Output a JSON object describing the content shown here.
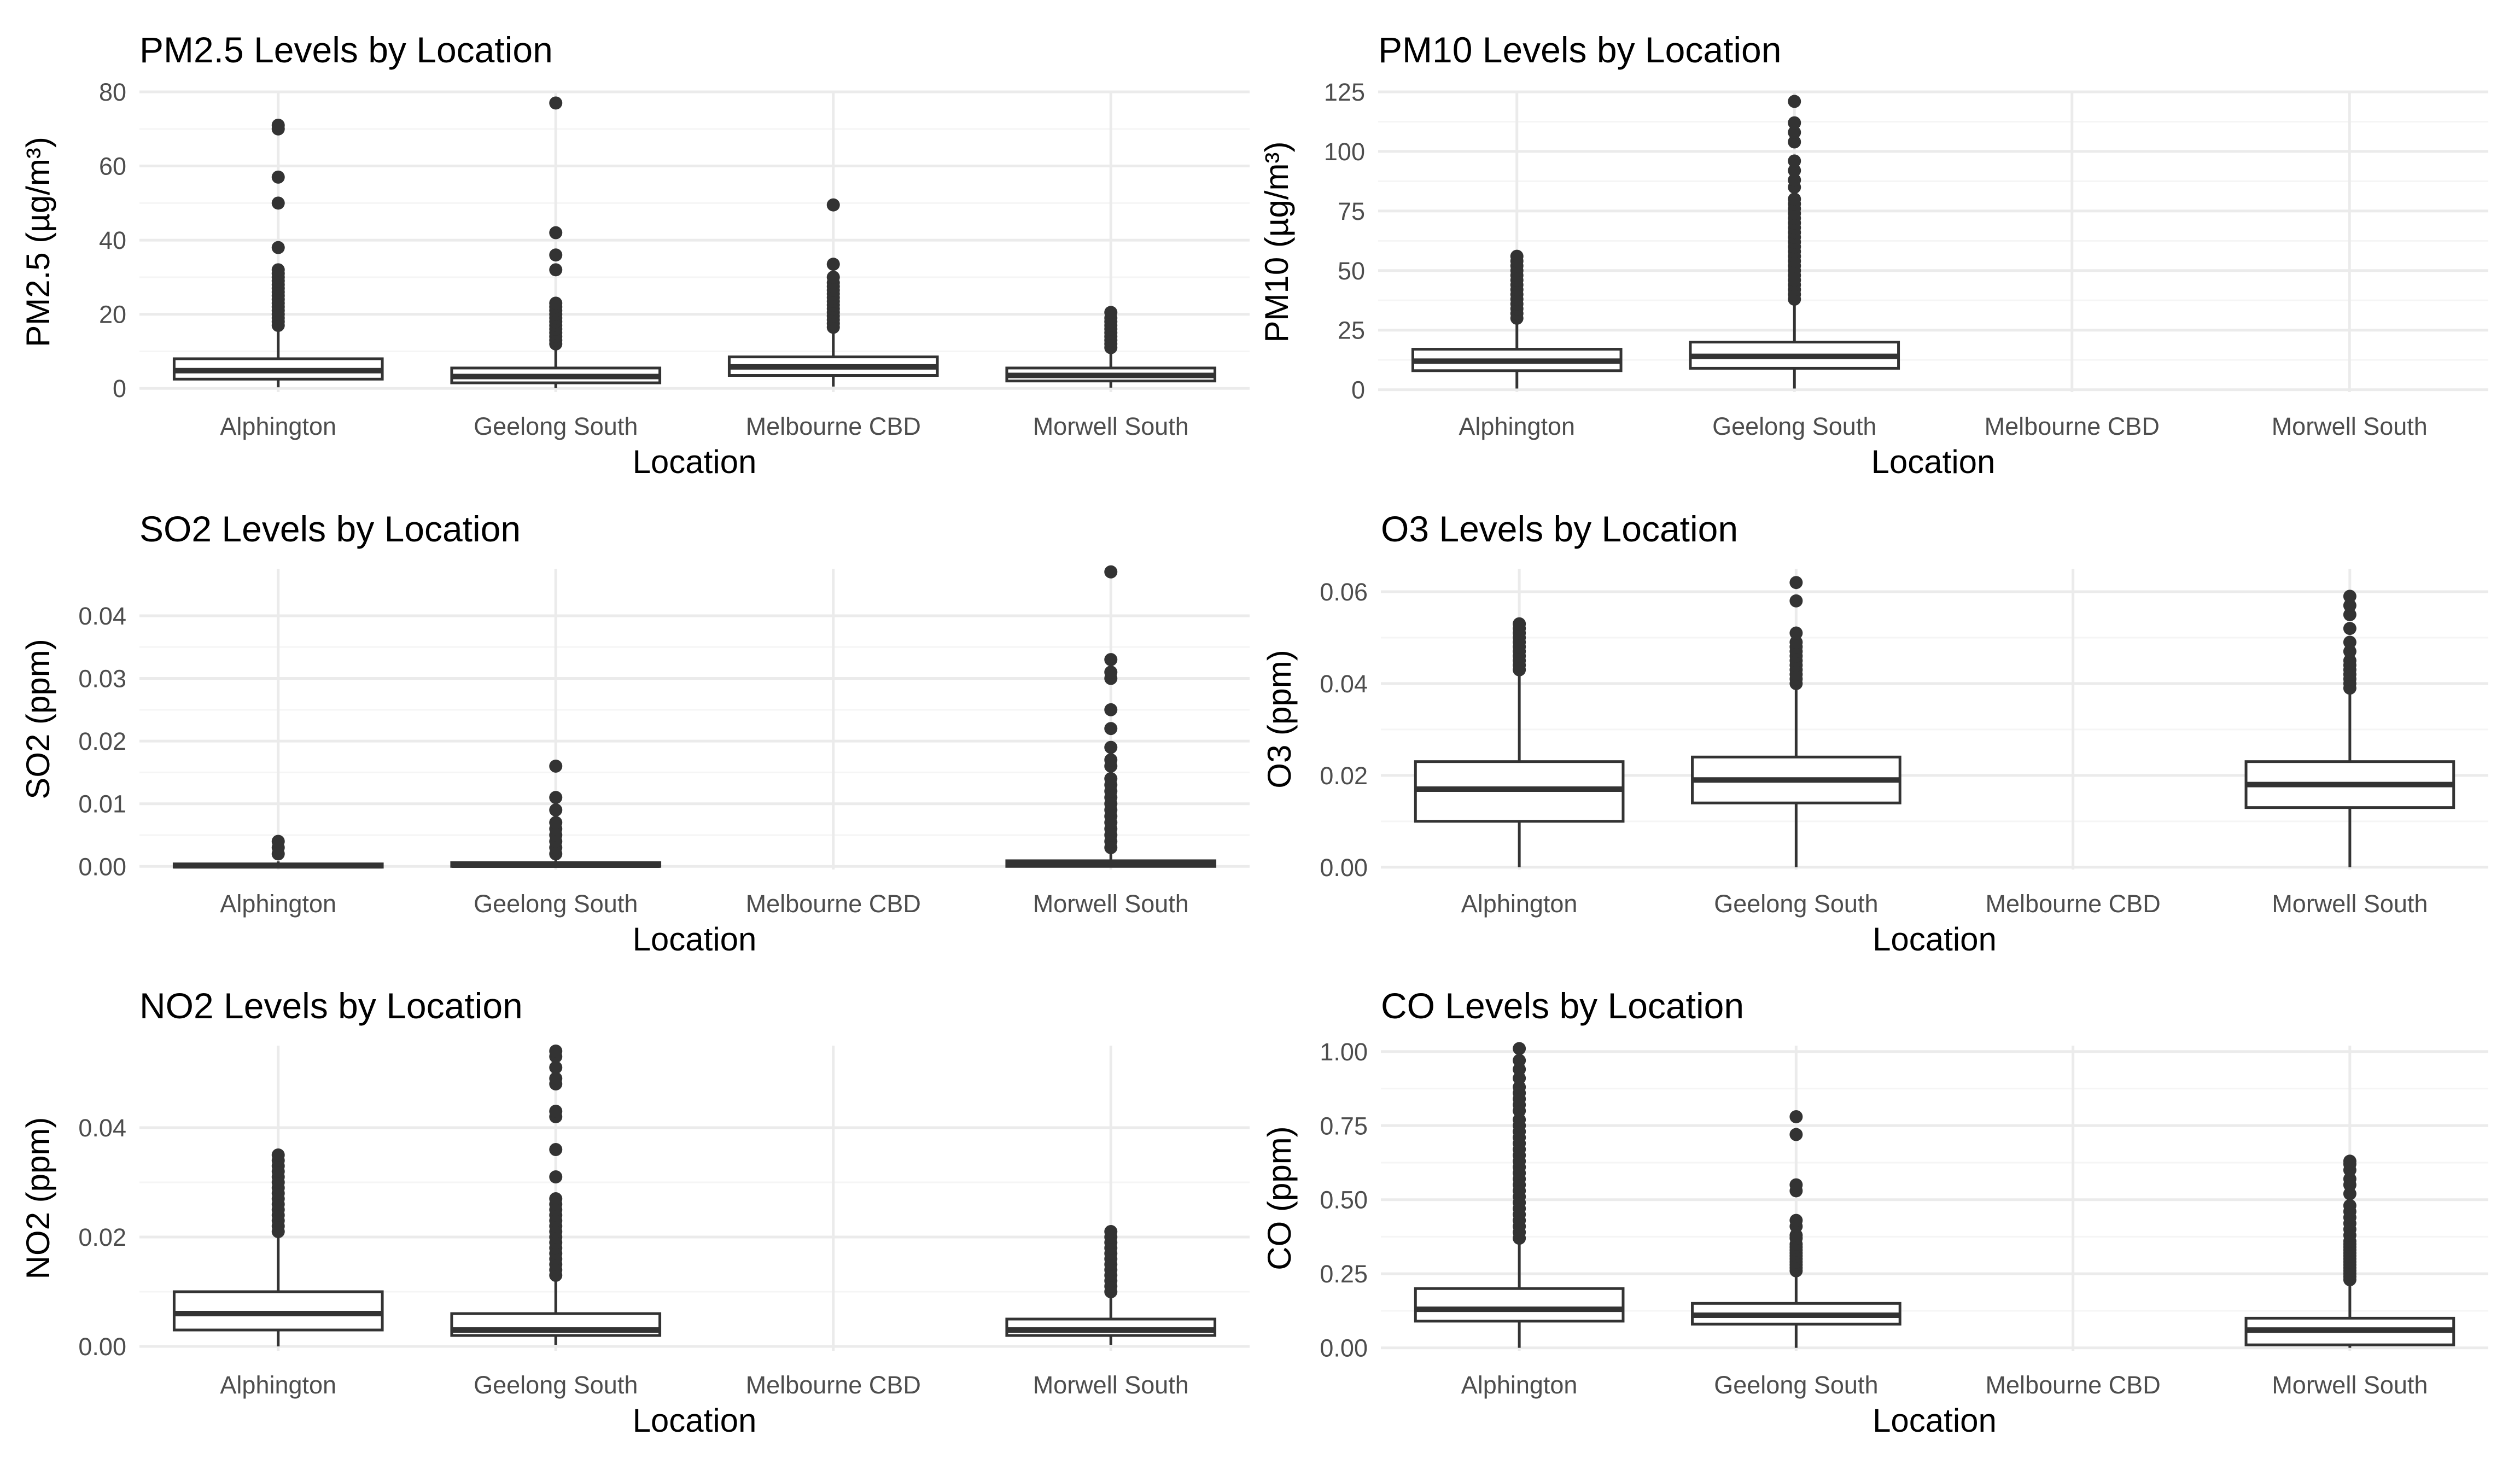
{
  "chart_data": [
    {
      "type": "boxplot",
      "title": "PM2.5 Levels by Location",
      "xlabel": "Location",
      "ylabel": "PM2.5 (µg/m³)",
      "categories": [
        "Alphington",
        "Geelong South",
        "Melbourne CBD",
        "Morwell South"
      ],
      "ylim": [
        -1,
        80
      ],
      "yticks": [
        0,
        20,
        40,
        60,
        80
      ],
      "ytick_labels": [
        "0",
        "20",
        "40",
        "60",
        "80"
      ],
      "grid": true,
      "boxes": [
        {
          "category": "Alphington",
          "whisker_low": 0.3,
          "q1": 2.5,
          "median": 4.8,
          "q3": 8,
          "whisker_high": 16.5,
          "outliers": [
            17,
            18,
            19,
            20,
            21,
            22,
            23,
            24,
            25,
            26,
            27,
            28,
            29,
            30,
            31,
            32,
            38,
            50,
            57,
            70,
            71
          ]
        },
        {
          "category": "Geelong South",
          "whisker_low": 0.1,
          "q1": 1.5,
          "median": 3.2,
          "q3": 5.5,
          "whisker_high": 11.5,
          "outliers": [
            12,
            13,
            14,
            15,
            16,
            17,
            18,
            19,
            20,
            21,
            22,
            23,
            32,
            36,
            42,
            77
          ]
        },
        {
          "category": "Melbourne CBD",
          "whisker_low": 0.5,
          "q1": 3.5,
          "median": 5.8,
          "q3": 8.5,
          "whisker_high": 16,
          "outliers": [
            16.5,
            17.5,
            18.5,
            19.5,
            20.5,
            21.5,
            22.5,
            23.5,
            24.5,
            25.5,
            26.5,
            27.5,
            28.5,
            30,
            33.5,
            49.5
          ]
        },
        {
          "category": "Morwell South",
          "whisker_low": 0.2,
          "q1": 2,
          "median": 3.5,
          "q3": 5.5,
          "whisker_high": 10.5,
          "outliers": [
            11,
            12,
            13,
            14,
            15,
            16,
            17,
            18,
            19,
            20.5
          ]
        }
      ]
    },
    {
      "type": "boxplot",
      "title": "PM10 Levels by Location",
      "xlabel": "Location",
      "ylabel": "PM10 (µg/m³)",
      "categories": [
        "Alphington",
        "Geelong South",
        "Melbourne CBD",
        "Morwell South"
      ],
      "ylim": [
        -1,
        125
      ],
      "yticks": [
        0,
        25,
        50,
        75,
        100,
        125
      ],
      "ytick_labels": [
        "0",
        "25",
        "50",
        "75",
        "100",
        "125"
      ],
      "grid": true,
      "boxes": [
        {
          "category": "Alphington",
          "whisker_low": 0.5,
          "q1": 8,
          "median": 12,
          "q3": 17,
          "whisker_high": 29,
          "outliers": [
            30,
            32,
            34,
            36,
            38,
            40,
            42,
            44,
            46,
            48,
            50,
            52,
            54,
            56
          ]
        },
        {
          "category": "Geelong South",
          "whisker_low": 0.5,
          "q1": 9,
          "median": 14,
          "q3": 20,
          "whisker_high": 36,
          "outliers": [
            38,
            40,
            42,
            44,
            46,
            48,
            50,
            52,
            54,
            56,
            58,
            60,
            62,
            64,
            66,
            68,
            70,
            72,
            74,
            76,
            78,
            80,
            85,
            88,
            92,
            96,
            104,
            108,
            112,
            121
          ]
        }
      ]
    },
    {
      "type": "boxplot",
      "title": "SO2 Levels by Location",
      "xlabel": "Location",
      "ylabel": "SO2 (ppm)",
      "categories": [
        "Alphington",
        "Geelong South",
        "Melbourne CBD",
        "Morwell South"
      ],
      "ylim": [
        -0.0005,
        0.0475
      ],
      "yticks": [
        0,
        0.01,
        0.02,
        0.03,
        0.04
      ],
      "ytick_labels": [
        "0.00",
        "0.01",
        "0.02",
        "0.03",
        "0.04"
      ],
      "grid": true,
      "boxes": [
        {
          "category": "Alphington",
          "whisker_low": 0,
          "q1": 0,
          "median": 0.0001,
          "q3": 0.0004,
          "whisker_high": 0.0008,
          "outliers": [
            0.002,
            0.003,
            0.004
          ]
        },
        {
          "category": "Geelong South",
          "whisker_low": 0,
          "q1": 0,
          "median": 0.0002,
          "q3": 0.0006,
          "whisker_high": 0.0012,
          "outliers": [
            0.002,
            0.003,
            0.004,
            0.005,
            0.006,
            0.007,
            0.009,
            0.011,
            0.016
          ]
        },
        {
          "category": "Morwell South",
          "whisker_low": 0,
          "q1": 0,
          "median": 0.0004,
          "q3": 0.0009,
          "whisker_high": 0.002,
          "outliers": [
            0.003,
            0.004,
            0.005,
            0.006,
            0.007,
            0.008,
            0.009,
            0.01,
            0.011,
            0.012,
            0.013,
            0.014,
            0.016,
            0.017,
            0.019,
            0.022,
            0.025,
            0.03,
            0.031,
            0.033,
            0.047
          ]
        }
      ]
    },
    {
      "type": "boxplot",
      "title": "O3 Levels by Location",
      "xlabel": "Location",
      "ylabel": "O3 (ppm)",
      "categories": [
        "Alphington",
        "Geelong South",
        "Melbourne CBD",
        "Morwell South"
      ],
      "ylim": [
        -0.0005,
        0.065
      ],
      "yticks": [
        0,
        0.02,
        0.04,
        0.06
      ],
      "ytick_labels": [
        "0.00",
        "0.02",
        "0.04",
        "0.06"
      ],
      "grid": true,
      "boxes": [
        {
          "category": "Alphington",
          "whisker_low": 0,
          "q1": 0.01,
          "median": 0.017,
          "q3": 0.023,
          "whisker_high": 0.042,
          "outliers": [
            0.043,
            0.044,
            0.045,
            0.046,
            0.047,
            0.048,
            0.049,
            0.05,
            0.051,
            0.052,
            0.053
          ]
        },
        {
          "category": "Geelong South",
          "whisker_low": 0,
          "q1": 0.014,
          "median": 0.019,
          "q3": 0.024,
          "whisker_high": 0.039,
          "outliers": [
            0.04,
            0.041,
            0.042,
            0.043,
            0.044,
            0.045,
            0.046,
            0.047,
            0.048,
            0.049,
            0.051,
            0.058,
            0.062
          ]
        },
        {
          "category": "Morwell South",
          "whisker_low": 0,
          "q1": 0.013,
          "median": 0.018,
          "q3": 0.023,
          "whisker_high": 0.038,
          "outliers": [
            0.039,
            0.04,
            0.041,
            0.042,
            0.043,
            0.044,
            0.045,
            0.047,
            0.049,
            0.052,
            0.055,
            0.057,
            0.059
          ]
        }
      ]
    },
    {
      "type": "boxplot",
      "title": "NO2 Levels by Location",
      "xlabel": "Location",
      "ylabel": "NO2 (ppm)",
      "categories": [
        "Alphington",
        "Geelong South",
        "Melbourne CBD",
        "Morwell South"
      ],
      "ylim": [
        -0.0008,
        0.055
      ],
      "yticks": [
        0,
        0.02,
        0.04
      ],
      "ytick_labels": [
        "0.00",
        "0.02",
        "0.04"
      ],
      "grid": true,
      "boxes": [
        {
          "category": "Alphington",
          "whisker_low": 0,
          "q1": 0.003,
          "median": 0.006,
          "q3": 0.01,
          "whisker_high": 0.02,
          "outliers": [
            0.021,
            0.022,
            0.023,
            0.024,
            0.025,
            0.026,
            0.027,
            0.028,
            0.029,
            0.03,
            0.031,
            0.032,
            0.033,
            0.034,
            0.035
          ]
        },
        {
          "category": "Geelong South",
          "whisker_low": 0.0003,
          "q1": 0.002,
          "median": 0.003,
          "q3": 0.006,
          "whisker_high": 0.012,
          "outliers": [
            0.013,
            0.014,
            0.015,
            0.016,
            0.017,
            0.018,
            0.019,
            0.02,
            0.021,
            0.022,
            0.023,
            0.024,
            0.025,
            0.026,
            0.027,
            0.031,
            0.036,
            0.042,
            0.043,
            0.048,
            0.049,
            0.051,
            0.053,
            0.054
          ]
        },
        {
          "category": "Morwell South",
          "whisker_low": 0.0003,
          "q1": 0.002,
          "median": 0.003,
          "q3": 0.005,
          "whisker_high": 0.009,
          "outliers": [
            0.01,
            0.011,
            0.012,
            0.013,
            0.014,
            0.015,
            0.016,
            0.017,
            0.018,
            0.019,
            0.02,
            0.021
          ]
        }
      ]
    },
    {
      "type": "boxplot",
      "title": "CO Levels by Location",
      "xlabel": "Location",
      "ylabel": "CO (ppm)",
      "categories": [
        "Alphington",
        "Geelong South",
        "Melbourne CBD",
        "Morwell South"
      ],
      "ylim": [
        -0.01,
        1.02
      ],
      "yticks": [
        0,
        0.25,
        0.5,
        0.75,
        1
      ],
      "ytick_labels": [
        "0.00",
        "0.25",
        "0.50",
        "0.75",
        "1.00"
      ],
      "grid": true,
      "boxes": [
        {
          "category": "Alphington",
          "whisker_low": 0,
          "q1": 0.09,
          "median": 0.13,
          "q3": 0.2,
          "whisker_high": 0.36,
          "outliers": [
            0.37,
            0.39,
            0.41,
            0.43,
            0.45,
            0.47,
            0.49,
            0.51,
            0.53,
            0.55,
            0.57,
            0.59,
            0.61,
            0.63,
            0.65,
            0.67,
            0.69,
            0.71,
            0.73,
            0.75,
            0.77,
            0.8,
            0.82,
            0.84,
            0.86,
            0.88,
            0.91,
            0.94,
            0.97,
            1.01
          ]
        },
        {
          "category": "Geelong South",
          "whisker_low": 0,
          "q1": 0.08,
          "median": 0.11,
          "q3": 0.15,
          "whisker_high": 0.25,
          "outliers": [
            0.26,
            0.27,
            0.28,
            0.29,
            0.3,
            0.31,
            0.32,
            0.33,
            0.34,
            0.35,
            0.37,
            0.38,
            0.41,
            0.43,
            0.53,
            0.55,
            0.72,
            0.78
          ]
        },
        {
          "category": "Morwell South",
          "whisker_low": 0,
          "q1": 0.01,
          "median": 0.06,
          "q3": 0.1,
          "whisker_high": 0.22,
          "outliers": [
            0.23,
            0.24,
            0.25,
            0.26,
            0.27,
            0.28,
            0.29,
            0.3,
            0.31,
            0.32,
            0.33,
            0.34,
            0.35,
            0.36,
            0.38,
            0.4,
            0.42,
            0.44,
            0.46,
            0.48,
            0.52,
            0.55,
            0.57,
            0.6,
            0.62,
            0.63
          ]
        }
      ]
    }
  ]
}
